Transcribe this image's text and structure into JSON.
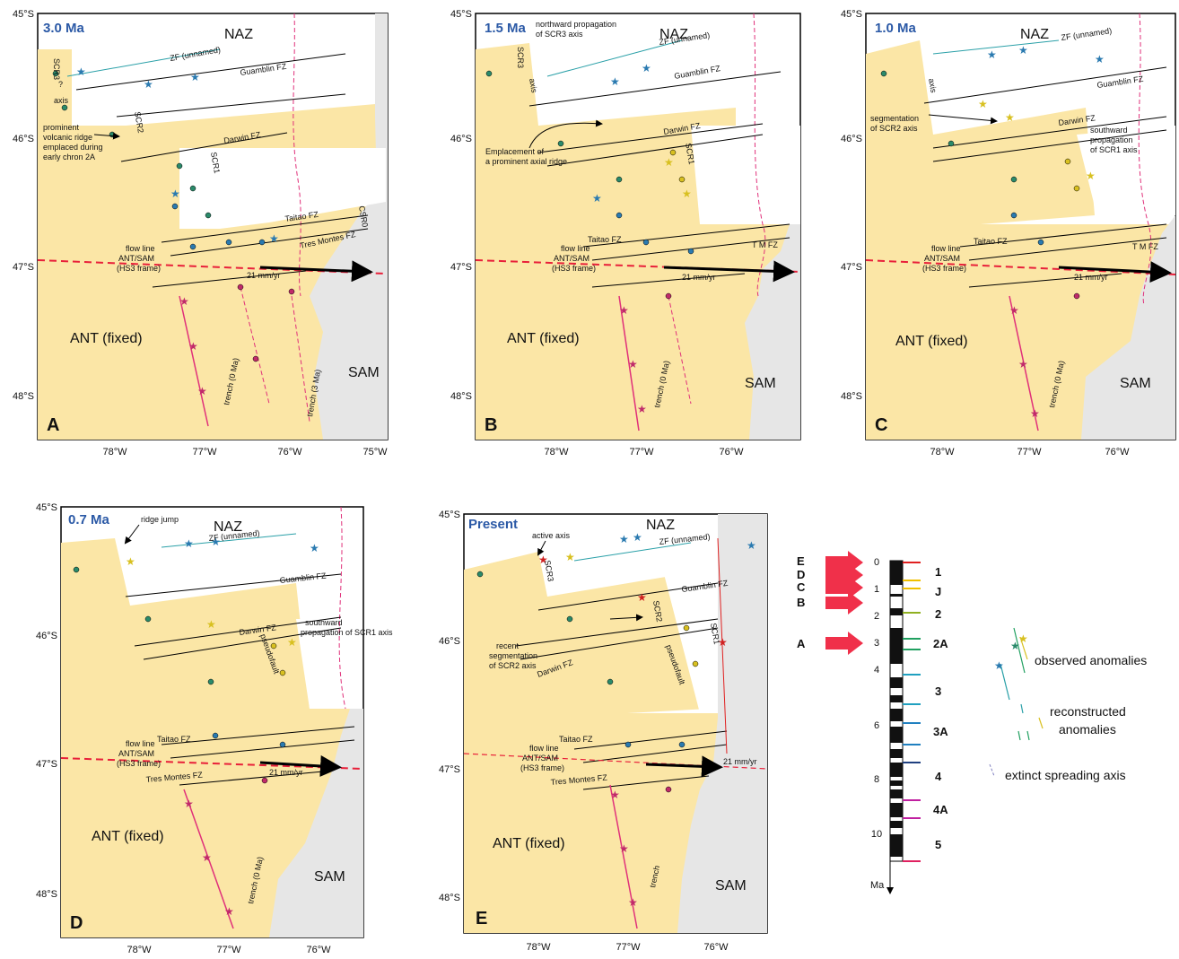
{
  "panels": [
    {
      "letter": "A",
      "age": "3.0 Ma",
      "lat_labels": [
        "45°S",
        "46°S",
        "47°S",
        "48°S"
      ],
      "lon_labels": [
        "78°W",
        "77°W",
        "76°W",
        "75°W"
      ],
      "plates": {
        "naz": "NAZ",
        "ant": "ANT (fixed)",
        "sam": "SAM"
      },
      "labels": {
        "zf": "ZF (unnamed)",
        "guamblin": "Guamblin FZ",
        "darwin": "Darwin FZ",
        "taitao": "Taitao FZ",
        "tres_montes": "Tres Montes FZ",
        "flow1": "flow line",
        "flow2": "ANT/SAM",
        "flow3": "(HS3 frame)",
        "rate": "21 mm/yr",
        "trench0": "trench (0 Ma)",
        "trench3": "trench (3 Ma)",
        "scr3": "SCR3",
        "scr2": "SCR2",
        "scr1": "SCR1",
        "csr0": "CSR0",
        "axis": "axis",
        "q": "?",
        "note1": "prominent",
        "note2": "volcanic ridge",
        "note3": "emplaced during",
        "note4": "early chron 2A"
      }
    },
    {
      "letter": "B",
      "age": "1.5 Ma",
      "lat_labels": [
        "45°S",
        "46°S",
        "47°S",
        "48°S"
      ],
      "lon_labels": [
        "78°W",
        "77°W",
        "76°W"
      ],
      "plates": {
        "naz": "NAZ",
        "ant": "ANT (fixed)",
        "sam": "SAM"
      },
      "labels": {
        "zf": "ZF (unnamed)",
        "guamblin": "Guamblin FZ",
        "darwin": "Darwin FZ",
        "taitao": "Taitao FZ",
        "tm": "T M FZ",
        "flow1": "flow line",
        "flow2": "ANT/SAM",
        "flow3": "(HS3 frame)",
        "rate": "21 mm/yr",
        "trench0": "trench (0 Ma)",
        "scr3": "SCR3",
        "scr1": "SCR1",
        "axis": "axis",
        "note1": "northward propagation",
        "note2": "of SCR3 axis",
        "note3": "Emplacement of",
        "note4": "a prominent axial ridge"
      }
    },
    {
      "letter": "C",
      "age": "1.0 Ma",
      "lat_labels": [
        "45°S",
        "46°S",
        "47°S",
        "48°S"
      ],
      "lon_labels": [
        "78°W",
        "77°W",
        "76°W"
      ],
      "plates": {
        "naz": "NAZ",
        "ant": "ANT (fixed)",
        "sam": "SAM"
      },
      "labels": {
        "zf": "ZF (unnamed)",
        "guamblin": "Guamblin FZ",
        "darwin": "Darwin FZ",
        "taitao": "Taitao FZ",
        "tm": "T M FZ",
        "flow1": "flow line",
        "flow2": "ANT/SAM",
        "flow3": "(HS3 frame)",
        "rate": "21 mm/yr",
        "trench0": "trench (0 Ma)",
        "axis": "axis",
        "note1": "segmentation",
        "note2": "of SCR2 axis",
        "note3": "southward",
        "note4": "propagation",
        "note5": "of SCR1 axis"
      }
    },
    {
      "letter": "D",
      "age": "0.7 Ma",
      "lat_labels": [
        "45°S",
        "46°S",
        "47°S",
        "48°S"
      ],
      "lon_labels": [
        "78°W",
        "77°W",
        "76°W"
      ],
      "plates": {
        "naz": "NAZ",
        "ant": "ANT (fixed)",
        "sam": "SAM"
      },
      "labels": {
        "zf": "ZF (unnamed)",
        "guamblin": "Guamblin FZ",
        "darwin": "Darwin FZ",
        "taitao": "Taitao FZ",
        "tres_montes": "Tres Montes FZ",
        "flow1": "flow line",
        "flow2": "ANT/SAM",
        "flow3": "(HS3 frame)",
        "rate": "21 mm/yr",
        "trench0": "trench (0 Ma)",
        "jump": "ridge jump",
        "pseudo": "pseudofault",
        "note1": "southward",
        "note2": "propagation of SCR1 axis"
      }
    },
    {
      "letter": "E",
      "age": "Present",
      "lat_labels": [
        "45°S",
        "46°S",
        "47°S",
        "48°S"
      ],
      "lon_labels": [
        "78°W",
        "77°W",
        "76°W"
      ],
      "plates": {
        "naz": "NAZ",
        "ant": "ANT (fixed)",
        "sam": "SAM"
      },
      "labels": {
        "zf": "ZF (unnamed)",
        "guamblin": "Guamblin FZ",
        "darwin": "Darwin FZ",
        "taitao": "Taitao FZ",
        "tres_montes": "Tres Montes FZ",
        "flow1": "flow line",
        "flow2": "ANT/SAM",
        "flow3": "(HS3 frame)",
        "rate": "21 mm/yr",
        "trench": "trench",
        "active": "active axis",
        "scr3": "SCR3",
        "scr2": "SCR2",
        "scr1": "SCR1",
        "pseudo": "pseudofault",
        "note1": "recent",
        "note2": "segmentation",
        "note3": "of SCR2 axis"
      }
    }
  ],
  "timescale": {
    "arrows": [
      "E",
      "D",
      "C",
      "B",
      "A"
    ],
    "ages": [
      "0",
      "1",
      "2",
      "3",
      "4",
      "6",
      "8",
      "10"
    ],
    "unit": "Ma",
    "chrons": [
      "1",
      "J",
      "2",
      "2A",
      "3",
      "3A",
      "4",
      "4A",
      "5"
    ]
  },
  "legend": {
    "observed": "observed anomalies",
    "reconstructed1": "reconstructed",
    "reconstructed2": "anomalies",
    "extinct": "extinct spreading axis"
  },
  "colors": {
    "ant_plate": "#fbe6a6",
    "sam_plate": "#e6e6e6",
    "frame": "#000000",
    "trench": "#e0307a",
    "flow_line": "#e8203a",
    "arrow_red": "#f0304a",
    "age_label": "#2b59a6",
    "chron_1": "#e02020",
    "chron_J": "#f0c000",
    "chron_2": "#90b020",
    "chron_2A": "#20a060",
    "chron_3": "#20a0c0",
    "chron_3A": "#2080c0",
    "chron_4": "#204080",
    "chron_4A": "#c020a0",
    "chron_5": "#e02060"
  }
}
